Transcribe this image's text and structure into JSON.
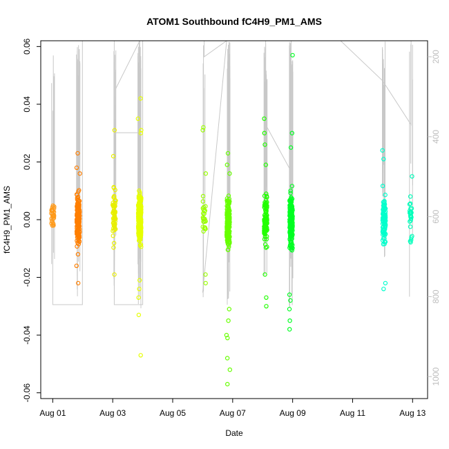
{
  "chart_data": {
    "type": "scatter",
    "title": "ATOM1 Southbound fC4H9_PM1_AMS",
    "xlabel": "Date",
    "ylabel": "fC4H9_PM1_AMS",
    "x_ticks": [
      {
        "day": 1,
        "label": "Aug 01"
      },
      {
        "day": 3,
        "label": "Aug 03"
      },
      {
        "day": 5,
        "label": "Aug 05"
      },
      {
        "day": 7,
        "label": "Aug 07"
      },
      {
        "day": 9,
        "label": "Aug 09"
      },
      {
        "day": 11,
        "label": "Aug 11"
      },
      {
        "day": 13,
        "label": "Aug 13"
      }
    ],
    "xlim": [
      0.6,
      13.5
    ],
    "ylim": [
      -0.062,
      0.062
    ],
    "y_ticks": [
      -0.06,
      -0.04,
      -0.02,
      0.0,
      0.02,
      0.04,
      0.06
    ],
    "y_tick_labels": [
      "-0.06",
      "-0.04",
      "-0.02",
      "0.00",
      "0.02",
      "0.04",
      "0.06"
    ],
    "y2_label": "",
    "y2_lim": [
      1055,
      160
    ],
    "y2_ticks": [
      200,
      400,
      600,
      800,
      1000
    ],
    "y2_tick_labels": [
      "200",
      "400",
      "600",
      "800",
      "1000"
    ],
    "colors": {
      "altitude_line": "#c8c8c8",
      "axis": "#000000",
      "right_axis": "#bdbdbd"
    },
    "clusters": [
      {
        "day": 1.0,
        "color": "#ff9a1a",
        "ymin": -0.006,
        "ymax": 0.009,
        "n": 30,
        "extremes": []
      },
      {
        "day": 1.85,
        "color": "#ff7f00",
        "ymin": -0.013,
        "ymax": 0.013,
        "n": 140,
        "extremes": [
          0.023,
          0.018,
          0.016,
          -0.016,
          -0.022
        ]
      },
      {
        "day": 3.05,
        "color": "#e8ef00",
        "ymin": -0.012,
        "ymax": 0.016,
        "n": 60,
        "extremes": [
          0.031,
          0.022,
          -0.019
        ]
      },
      {
        "day": 3.9,
        "color": "#e6ff00",
        "ymin": -0.013,
        "ymax": 0.013,
        "n": 200,
        "extremes": [
          0.042,
          0.035,
          0.031,
          0.03,
          -0.021,
          -0.024,
          -0.027,
          -0.033,
          -0.047
        ]
      },
      {
        "day": 6.05,
        "color": "#99ff00",
        "ymin": -0.01,
        "ymax": 0.01,
        "n": 25,
        "extremes": [
          0.032,
          0.031,
          0.016,
          -0.019,
          -0.022
        ]
      },
      {
        "day": 6.85,
        "color": "#66ff00",
        "ymin": -0.014,
        "ymax": 0.011,
        "n": 180,
        "extremes": [
          0.023,
          0.019,
          0.016,
          -0.031,
          -0.035,
          -0.04,
          -0.041,
          -0.048,
          -0.052,
          -0.057
        ]
      },
      {
        "day": 8.1,
        "color": "#22ff00",
        "ymin": -0.012,
        "ymax": 0.013,
        "n": 100,
        "extremes": [
          0.035,
          0.03,
          0.026,
          0.019,
          -0.019,
          -0.027,
          -0.03
        ]
      },
      {
        "day": 8.95,
        "color": "#00ff22",
        "ymin": -0.015,
        "ymax": 0.014,
        "n": 200,
        "extremes": [
          0.057,
          0.03,
          0.025,
          -0.026,
          -0.028,
          -0.031,
          -0.035,
          -0.038
        ]
      },
      {
        "day": 12.05,
        "color": "#00ffcc",
        "ymin": -0.013,
        "ymax": 0.014,
        "n": 90,
        "extremes": [
          0.024,
          0.021,
          -0.022,
          -0.024
        ]
      },
      {
        "day": 12.95,
        "color": "#00ffbb",
        "ymin": -0.012,
        "ymax": 0.012,
        "n": 25,
        "extremes": [
          0.015,
          -0.007
        ]
      }
    ],
    "altitude_track": [
      {
        "day": 1.0,
        "alt": 335
      },
      {
        "day": 1.0,
        "alt": 820
      },
      {
        "day": 1.99,
        "alt": 820
      },
      {
        "day": 1.99,
        "alt": 160
      },
      {
        "day": 3.05,
        "alt": 160
      },
      {
        "day": 3.05,
        "alt": 820
      },
      {
        "day": 3.05,
        "alt": 390
      },
      {
        "day": 3.9,
        "alt": 390
      },
      {
        "day": 3.9,
        "alt": 160
      },
      {
        "day": 4.0,
        "alt": 160
      },
      {
        "day": 4.0,
        "alt": 820
      },
      {
        "day": 3.05,
        "alt": 820
      },
      {
        "day": 3.1,
        "alt": 280
      },
      {
        "day": 3.9,
        "alt": 160
      },
      {
        "day": 4.0,
        "alt": 160
      },
      {
        "day": 6.05,
        "alt": 160
      },
      {
        "day": 6.05,
        "alt": 200
      },
      {
        "day": 6.8,
        "alt": 160
      },
      {
        "day": 6.0,
        "alt": 790
      },
      {
        "day": 6.8,
        "alt": 160
      },
      {
        "day": 8.1,
        "alt": 160
      },
      {
        "day": 8.1,
        "alt": 370
      },
      {
        "day": 8.9,
        "alt": 480
      },
      {
        "day": 8.95,
        "alt": 160
      },
      {
        "day": 10.6,
        "alt": 160
      },
      {
        "day": 12.0,
        "alt": 260
      },
      {
        "day": 12.95,
        "alt": 370
      },
      {
        "day": 12.95,
        "alt": 160
      }
    ]
  }
}
